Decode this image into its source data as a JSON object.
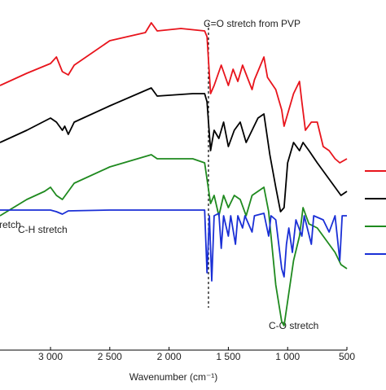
{
  "chart_data": {
    "type": "line",
    "xlabel": "Wavenumber (cm⁻¹)",
    "xlim": [
      3426,
      500
    ],
    "ylim": [
      0,
      430
    ],
    "xticks": [
      {
        "value": 3000,
        "label": "3 000"
      },
      {
        "value": 2500,
        "label": "2 500"
      },
      {
        "value": 2000,
        "label": "2 000"
      },
      {
        "value": 1500,
        "label": "1 500"
      },
      {
        "value": 1000,
        "label": "1 000"
      },
      500
    ],
    "annotations": [
      "C=O stretch from PVP",
      "retch",
      "C-H stretch",
      "C-O stretch"
    ],
    "series": [
      {
        "color": "#e8141c",
        "x": [
          3426,
          3200,
          3000,
          2950,
          2900,
          2850,
          2800,
          2500,
          2200,
          2150,
          2100,
          1900,
          1700,
          1680,
          1650,
          1620,
          1560,
          1500,
          1460,
          1420,
          1380,
          1300,
          1280,
          1200,
          1170,
          1100,
          1050,
          1030,
          1000,
          950,
          900,
          880,
          850,
          800,
          750,
          700,
          650,
          600,
          560,
          500
        ],
        "values": [
          325,
          340,
          352,
          360,
          342,
          338,
          350,
          380,
          390,
          402,
          392,
          395,
          392,
          385,
          315,
          325,
          350,
          325,
          345,
          330,
          350,
          320,
          332,
          360,
          335,
          320,
          295,
          275,
          290,
          315,
          330,
          305,
          270,
          280,
          280,
          250,
          245,
          235,
          230,
          235
        ]
      },
      {
        "color": "#000000",
        "x": [
          3426,
          3200,
          3000,
          2950,
          2900,
          2880,
          2850,
          2800,
          2500,
          2150,
          2100,
          1800,
          1700,
          1680,
          1650,
          1620,
          1580,
          1540,
          1500,
          1450,
          1400,
          1350,
          1300,
          1250,
          1200,
          1150,
          1100,
          1060,
          1030,
          1000,
          950,
          900,
          870,
          820,
          750,
          700,
          600,
          550,
          500
        ],
        "values": [
          255,
          270,
          285,
          280,
          270,
          275,
          265,
          280,
          300,
          322,
          312,
          315,
          315,
          305,
          245,
          270,
          260,
          280,
          250,
          270,
          280,
          255,
          270,
          285,
          290,
          240,
          200,
          170,
          175,
          230,
          255,
          245,
          255,
          245,
          230,
          220,
          200,
          190,
          195
        ]
      },
      {
        "color": "#1f8a1f",
        "x": [
          3426,
          3200,
          3050,
          3000,
          2950,
          2900,
          2850,
          2800,
          2500,
          2150,
          2100,
          1800,
          1700,
          1680,
          1650,
          1620,
          1580,
          1540,
          1500,
          1450,
          1400,
          1350,
          1300,
          1250,
          1200,
          1160,
          1100,
          1050,
          1030,
          1000,
          950,
          900,
          870,
          820,
          750,
          700,
          650,
          600,
          550,
          500
        ],
        "values": [
          165,
          185,
          195,
          200,
          190,
          185,
          195,
          205,
          225,
          240,
          235,
          235,
          230,
          210,
          180,
          190,
          165,
          190,
          175,
          190,
          185,
          165,
          190,
          195,
          200,
          170,
          80,
          35,
          30,
          60,
          110,
          140,
          175,
          155,
          150,
          140,
          130,
          120,
          105,
          100
        ]
      },
      {
        "color": "#1a2fd6",
        "x": [
          3426,
          3000,
          2950,
          2900,
          2850,
          2500,
          2000,
          1700,
          1680,
          1660,
          1640,
          1620,
          1580,
          1560,
          1540,
          1500,
          1480,
          1440,
          1420,
          1380,
          1360,
          1300,
          1280,
          1200,
          1160,
          1140,
          1100,
          1050,
          1030,
          1010,
          990,
          960,
          930,
          880,
          860,
          800,
          780,
          700,
          650,
          600,
          560,
          540,
          500
        ],
        "values": [
          172,
          172,
          170,
          167,
          171,
          172,
          172,
          172,
          95,
          165,
          85,
          165,
          168,
          125,
          165,
          140,
          165,
          130,
          165,
          150,
          165,
          145,
          165,
          168,
          140,
          165,
          160,
          100,
          90,
          130,
          150,
          120,
          160,
          140,
          165,
          130,
          165,
          160,
          145,
          165,
          110,
          165,
          165
        ]
      }
    ]
  }
}
